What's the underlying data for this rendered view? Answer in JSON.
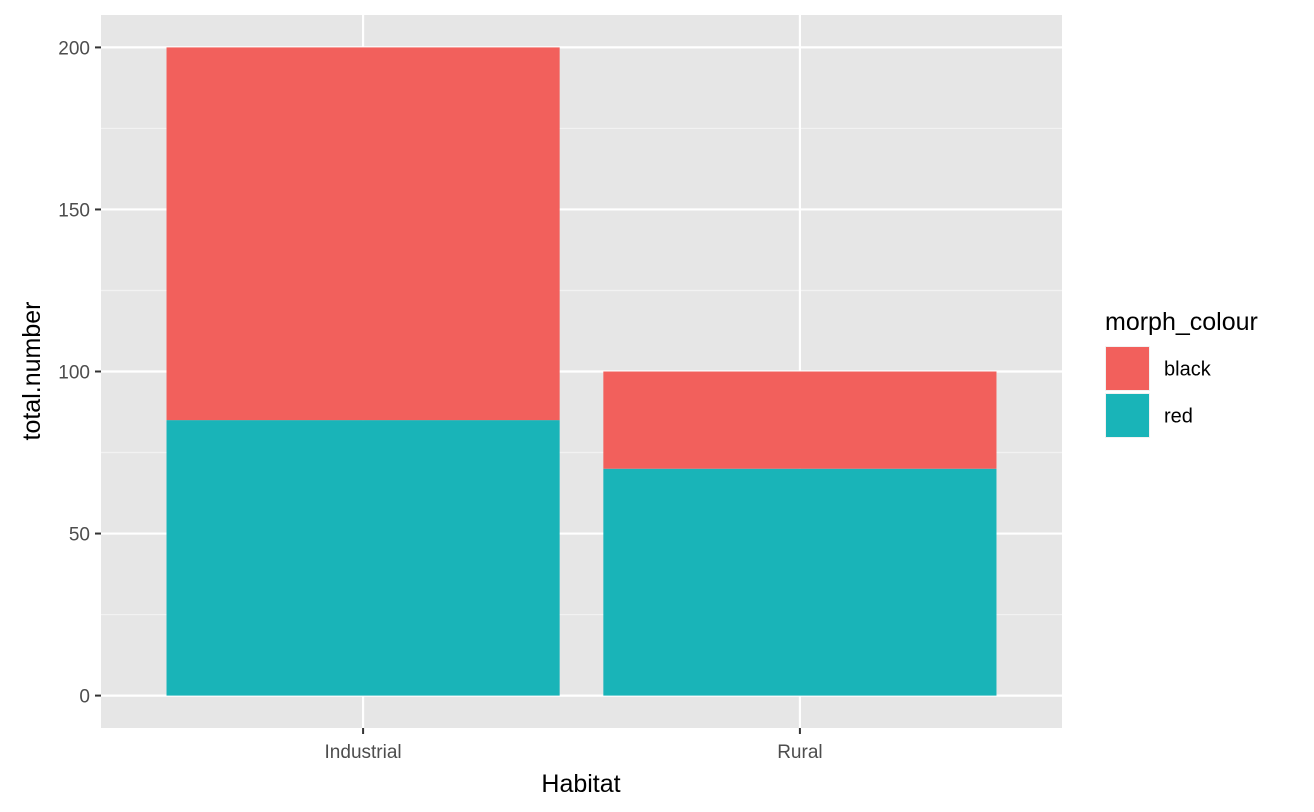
{
  "chart_data": {
    "type": "bar",
    "stacked": true,
    "title": "",
    "xlabel": "Habitat",
    "ylabel": "total.number",
    "categories": [
      "Industrial",
      "Rural"
    ],
    "series": [
      {
        "name": "red",
        "color": "#19B4B8",
        "values": [
          85,
          70
        ]
      },
      {
        "name": "black",
        "color": "#F2605C",
        "values": [
          115,
          30
        ]
      }
    ],
    "ylim": [
      -10,
      210
    ],
    "yticks": [
      0,
      50,
      100,
      150,
      200
    ],
    "grid": true,
    "panel_background": "#E6E6E6",
    "legend": {
      "title": "morph_colour",
      "position": "right",
      "entries": [
        {
          "label": "black",
          "color": "#F2605C"
        },
        {
          "label": "red",
          "color": "#19B4B8"
        }
      ]
    }
  }
}
